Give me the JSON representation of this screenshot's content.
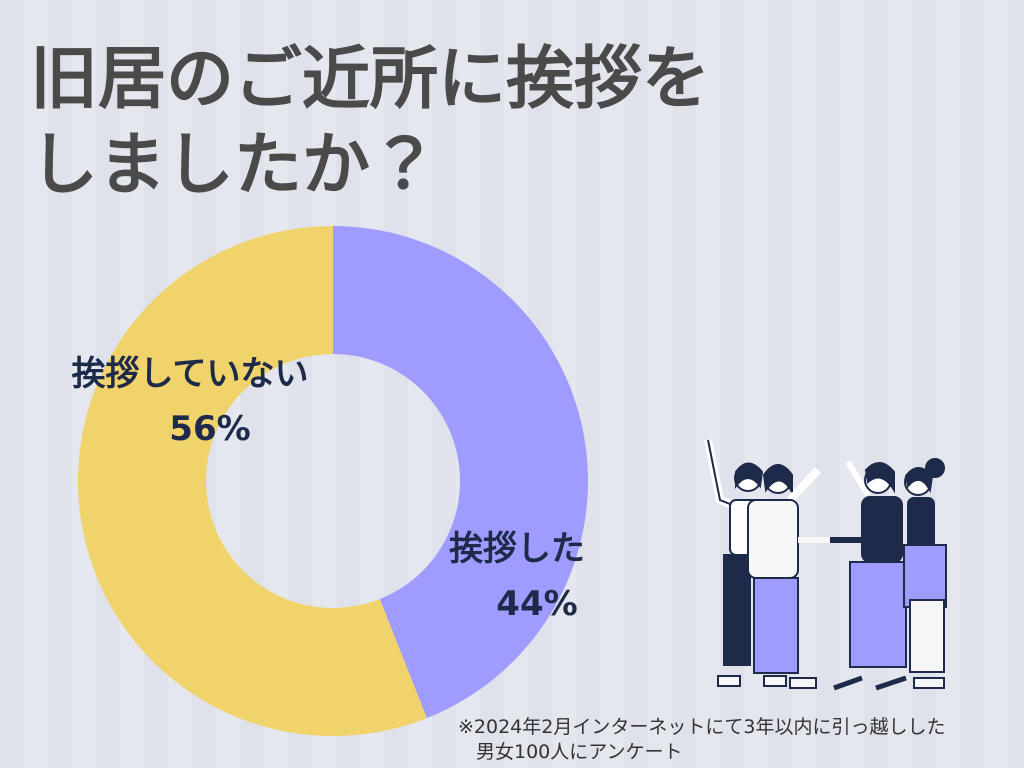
{
  "chart_data": {
    "type": "donut",
    "title": [
      "旧居のご近所に挨拶を",
      "しましたか？"
    ],
    "categories": [
      "挨拶した",
      "挨拶していない"
    ],
    "values": [
      44,
      56
    ],
    "value_labels": [
      "44%",
      "56%"
    ],
    "colors": [
      "#a09cff",
      "#f0d36b"
    ],
    "note": [
      "※2024年2月インターネットにて3年以内に引っ越しした",
      "男女100人にアンケート"
    ]
  }
}
